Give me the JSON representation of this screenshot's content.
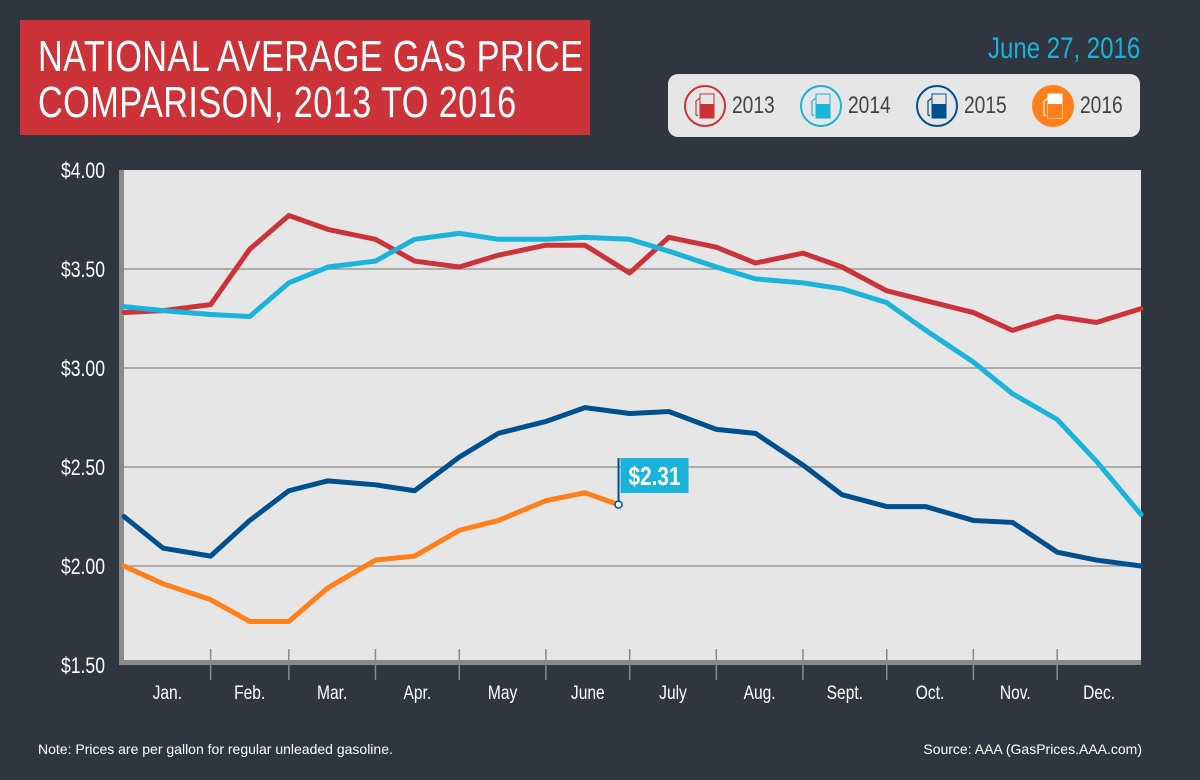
{
  "header": {
    "title_line1": "NATIONAL AVERAGE GAS PRICE",
    "title_line2": "COMPARISON, 2013 TO 2016",
    "date": "June 27, 2016"
  },
  "legend": [
    {
      "label": "2013",
      "color": "#cc3339",
      "icon": "gas-pump-icon"
    },
    {
      "label": "2014",
      "color": "#1ab3dc",
      "icon": "gas-pump-icon"
    },
    {
      "label": "2015",
      "color": "#00508f",
      "icon": "gas-pump-icon"
    },
    {
      "label": "2016",
      "color": "#ff7f1a",
      "icon": "gas-pump-icon"
    }
  ],
  "footer": {
    "note": "Note: Prices are per gallon for regular unleaded gasoline.",
    "source": "Source: AAA (GasPrices.AAA.com)"
  },
  "chart_data": {
    "type": "line",
    "title": "NATIONAL AVERAGE GAS PRICE COMPARISON, 2013 TO 2016",
    "xlabel": "",
    "ylabel": "",
    "ylim": [
      1.5,
      4.0
    ],
    "yticks": [
      "$4.00",
      "$3.50",
      "$3.00",
      "$2.50",
      "$2.00",
      "$1.50"
    ],
    "ytick_values": [
      4.0,
      3.5,
      3.0,
      2.5,
      2.0,
      1.5
    ],
    "xticks": [
      "Jan.",
      "Feb.",
      "Mar.",
      "Apr.",
      "May",
      "June",
      "July",
      "Aug.",
      "Sept.",
      "Oct.",
      "Nov.",
      "Dec."
    ],
    "grid": true,
    "legend_position": "top-right",
    "x": [
      "01-01",
      "01-15",
      "02-01",
      "02-15",
      "03-01",
      "03-15",
      "04-01",
      "04-15",
      "05-01",
      "05-15",
      "06-01",
      "06-15",
      "07-01",
      "07-15",
      "08-01",
      "08-15",
      "09-01",
      "09-15",
      "10-01",
      "10-15",
      "11-01",
      "11-15",
      "12-01",
      "12-15",
      "12-31"
    ],
    "series": [
      {
        "name": "2013",
        "color": "#cc3339",
        "values": [
          3.28,
          3.29,
          3.32,
          3.6,
          3.77,
          3.7,
          3.65,
          3.54,
          3.51,
          3.57,
          3.62,
          3.62,
          3.48,
          3.66,
          3.61,
          3.53,
          3.58,
          3.51,
          3.39,
          3.34,
          3.28,
          3.19,
          3.26,
          3.23,
          3.3
        ]
      },
      {
        "name": "2014",
        "color": "#1ab3dc",
        "values": [
          3.31,
          3.29,
          3.27,
          3.26,
          3.43,
          3.51,
          3.54,
          3.65,
          3.68,
          3.65,
          3.65,
          3.66,
          3.65,
          3.59,
          3.51,
          3.45,
          3.43,
          3.4,
          3.33,
          3.19,
          3.03,
          2.87,
          2.74,
          2.53,
          2.26
        ]
      },
      {
        "name": "2015",
        "color": "#00508f",
        "values": [
          2.25,
          2.09,
          2.05,
          2.23,
          2.38,
          2.43,
          2.41,
          2.38,
          2.55,
          2.67,
          2.73,
          2.8,
          2.77,
          2.78,
          2.69,
          2.67,
          2.51,
          2.36,
          2.3,
          2.3,
          2.23,
          2.22,
          2.07,
          2.03,
          2.0
        ]
      },
      {
        "name": "2016",
        "color": "#ff7f1a",
        "values": [
          2.0,
          1.91,
          1.83,
          1.72,
          1.72,
          1.89,
          2.03,
          2.05,
          2.18,
          2.23,
          2.33,
          2.37,
          null,
          null,
          null,
          null,
          null,
          null,
          null,
          null,
          null,
          null,
          null,
          null,
          null
        ],
        "last_point": {
          "x": "06-27",
          "value": 2.31
        }
      }
    ],
    "annotation": {
      "label": "$2.31",
      "x": "06-27",
      "value": 2.31,
      "color": "#1ab3dc"
    }
  }
}
